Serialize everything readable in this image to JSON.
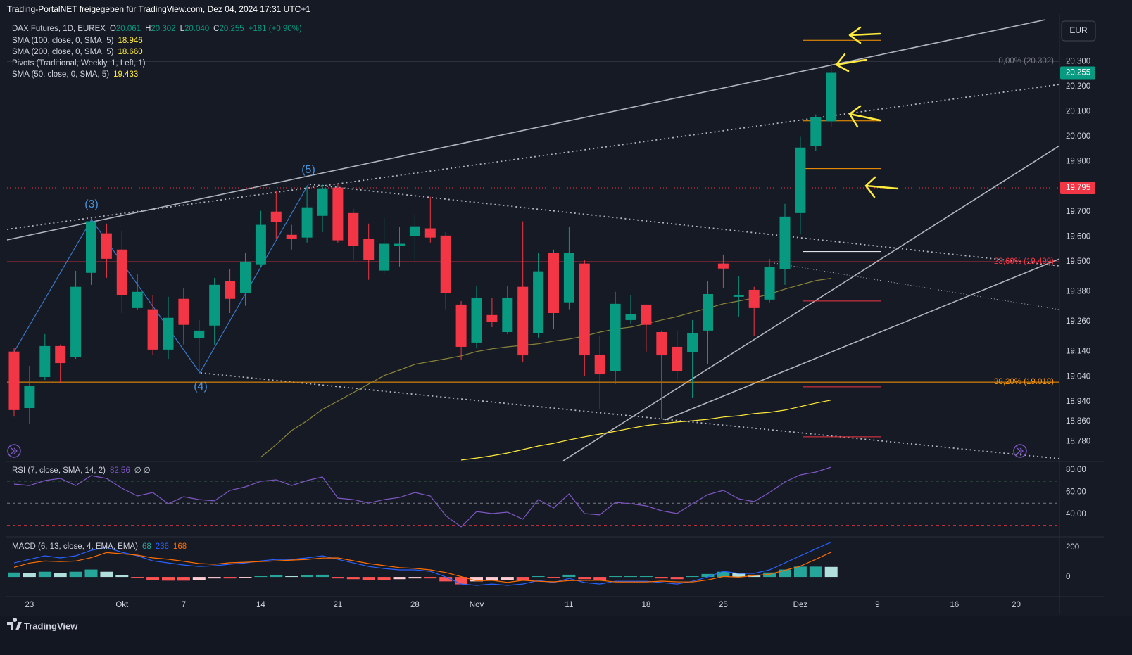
{
  "header": {
    "text": "Trading-PortalNET freigegeben für TradingView.com, Dez 04, 2024 17:31 UTC+1"
  },
  "currency": "EUR",
  "footer": {
    "brand": "TradingView"
  },
  "chart_data": [
    {
      "type": "candlestick",
      "title": "DAX Futures, 1D, EUREX",
      "legend_values": [
        {
          "key": "O",
          "text": "20.061"
        },
        {
          "key": "H",
          "text": "20.302"
        },
        {
          "key": "L",
          "text": "20.040"
        },
        {
          "key": "C",
          "text": "20.255"
        }
      ],
      "change": "+181 (+0,90%)",
      "waves": [
        "(3)",
        "(4)",
        "(5)"
      ],
      "categories": [
        null,
        "23",
        null,
        null,
        null,
        null,
        null,
        "Okt",
        null,
        null,
        null,
        "7",
        null,
        null,
        null,
        null,
        "14",
        null,
        null,
        null,
        null,
        "21",
        null,
        null,
        null,
        null,
        "28",
        null,
        null,
        null,
        "Nov",
        null,
        null,
        null,
        null,
        null,
        "11",
        null,
        null,
        null,
        null,
        "18",
        null,
        null,
        null,
        null,
        "25",
        null,
        null,
        null,
        null,
        "Dez",
        null,
        null,
        null,
        null,
        "9",
        null,
        null,
        null,
        null,
        "16",
        null,
        null,
        null,
        "20"
      ],
      "series": [
        {
          "name": "DAX Futures",
          "up_color": "#089981",
          "down_color": "#f23645",
          "open": [
            19.14,
            18.914,
            19.038,
            19.162,
            19.117,
            19.455,
            19.613,
            19.548,
            19.314,
            19.309,
            19.148,
            19.351,
            19.193,
            19.244,
            19.421,
            19.373,
            19.489,
            19.7,
            19.607,
            19.596,
            19.683,
            19.796,
            19.694,
            19.59,
            19.464,
            19.562,
            19.602,
            19.633,
            19.604,
            19.328,
            19.176,
            19.286,
            19.218,
            19.399,
            19.213,
            19.534,
            19.337,
            19.492,
            19.128,
            19.061,
            19.266,
            19.328,
            19.218,
            19.159,
            19.139,
            19.224,
            19.492,
            19.359,
            19.387,
            19.348,
            19.469,
            19.694,
            19.962,
            20.061,
            null,
            null,
            null,
            null,
            null,
            null,
            null,
            null,
            null,
            null,
            null,
            null
          ],
          "high": [
            19.154,
            19.083,
            19.21,
            19.168,
            19.463,
            19.675,
            19.652,
            19.624,
            19.449,
            19.365,
            19.359,
            19.393,
            19.266,
            19.435,
            19.469,
            19.534,
            19.703,
            19.782,
            19.647,
            19.801,
            19.81,
            19.81,
            19.711,
            19.652,
            19.675,
            19.638,
            19.689,
            19.759,
            19.618,
            19.342,
            19.401,
            19.356,
            19.401,
            19.661,
            19.534,
            19.548,
            19.638,
            19.506,
            19.204,
            19.379,
            19.365,
            19.328,
            19.224,
            19.224,
            19.266,
            19.421,
            19.528,
            19.441,
            19.399,
            19.511,
            19.731,
            19.999,
            20.089,
            20.302,
            null,
            null,
            null,
            null,
            null,
            null,
            null,
            null,
            null,
            null,
            null,
            null
          ],
          "low": [
            18.88,
            18.852,
            19.027,
            19.013,
            19.111,
            19.407,
            19.435,
            19.294,
            19.308,
            19.126,
            19.111,
            19.168,
            19.055,
            19.168,
            19.294,
            19.323,
            19.478,
            19.59,
            19.548,
            19.576,
            19.618,
            19.576,
            19.506,
            19.427,
            19.449,
            19.48,
            19.506,
            19.576,
            19.309,
            19.106,
            19.154,
            19.238,
            19.21,
            19.097,
            19.196,
            19.23,
            19.309,
            19.041,
            18.908,
            19.01,
            19.252,
            19.14,
            18.872,
            19.027,
            18.956,
            19.089,
            19.393,
            19.28,
            19.202,
            19.337,
            19.407,
            19.61,
            19.942,
            20.04,
            null,
            null,
            null,
            null,
            null,
            null,
            null,
            null,
            null,
            null,
            null,
            null
          ],
          "close": [
            18.906,
            19.004,
            19.162,
            19.094,
            19.399,
            19.661,
            19.511,
            19.365,
            19.379,
            19.148,
            19.275,
            19.247,
            19.224,
            19.407,
            19.351,
            19.5,
            19.647,
            19.658,
            19.59,
            19.717,
            19.793,
            19.585,
            19.562,
            19.506,
            19.571,
            19.571,
            19.641,
            19.596,
            19.373,
            19.159,
            19.356,
            19.258,
            19.356,
            19.125,
            19.461,
            19.294,
            19.534,
            19.125,
            19.049,
            19.331,
            19.289,
            19.247,
            19.125,
            19.063,
            19.213,
            19.37,
            19.472,
            19.365,
            19.314,
            19.478,
            19.68,
            19.956,
            20.078,
            20.255,
            null,
            null,
            null,
            null,
            null,
            null,
            null,
            null,
            null,
            null,
            null,
            null
          ]
        }
      ],
      "indicators": [
        {
          "name": "SMA (100, close, 0, SMA, 5)",
          "value": "18.946",
          "color": "#ffeb3b",
          "values": [
            null,
            null,
            null,
            null,
            null,
            null,
            null,
            null,
            null,
            null,
            null,
            null,
            null,
            null,
            null,
            null,
            null,
            null,
            null,
            null,
            null,
            null,
            null,
            null,
            null,
            null,
            null,
            null,
            null,
            18.706,
            18.714,
            18.723,
            18.734,
            18.748,
            18.762,
            18.773,
            18.787,
            18.799,
            18.81,
            18.821,
            18.833,
            18.844,
            18.852,
            18.858,
            18.863,
            18.869,
            18.878,
            18.883,
            18.892,
            18.897,
            18.906,
            18.92,
            18.934,
            18.946,
            null,
            null,
            null,
            null,
            null,
            null,
            null,
            null,
            null,
            null,
            null,
            null
          ]
        },
        {
          "name": "SMA (200, close, 0, SMA, 5)",
          "value": "18.660",
          "color": "#ffeb3b"
        },
        {
          "name": "Pivots (Traditional, Weekly, 1, Left, 1)"
        },
        {
          "name": "SMA (50, close, 0, SMA, 5)",
          "value": "19.433",
          "color": "#8a8538",
          "values": [
            null,
            null,
            null,
            null,
            null,
            null,
            null,
            null,
            null,
            null,
            null,
            null,
            null,
            null,
            null,
            null,
            18.717,
            18.768,
            18.824,
            18.863,
            18.909,
            18.942,
            18.976,
            19.01,
            19.044,
            19.066,
            19.089,
            19.1,
            19.111,
            19.123,
            19.14,
            19.151,
            19.159,
            19.165,
            19.171,
            19.182,
            19.19,
            19.202,
            19.218,
            19.23,
            19.238,
            19.252,
            19.266,
            19.28,
            19.297,
            19.314,
            19.331,
            19.342,
            19.354,
            19.37,
            19.39,
            19.407,
            19.424,
            19.433,
            null,
            null,
            null,
            null,
            null,
            null,
            null,
            null,
            null,
            null,
            null,
            null
          ]
        }
      ],
      "ylim": [
        18.703,
        20.49
      ],
      "yticks": [
        {
          "value": 20.3,
          "label": "20.300"
        },
        {
          "value": 20.2,
          "label": "20.200"
        },
        {
          "value": 20.1,
          "label": "20.100"
        },
        {
          "value": 20.0,
          "label": "20.000"
        },
        {
          "value": 19.9,
          "label": "19.900"
        },
        {
          "value": 19.7,
          "label": "19.700"
        },
        {
          "value": 19.6,
          "label": "19.600"
        },
        {
          "value": 19.5,
          "label": "19.500"
        },
        {
          "value": 19.38,
          "label": "19.380"
        },
        {
          "value": 19.26,
          "label": "19.260"
        },
        {
          "value": 19.14,
          "label": "19.140"
        },
        {
          "value": 19.04,
          "label": "19.040"
        },
        {
          "value": 18.94,
          "label": "18.940"
        },
        {
          "value": 18.86,
          "label": "18.860"
        },
        {
          "value": 18.78,
          "label": "18.780"
        }
      ],
      "grid": false,
      "fib": [
        {
          "label": "0,00% (20.302)",
          "value": 20.302,
          "color": "#787b86"
        },
        {
          "label": "23,60% (19.499)",
          "value": 19.499,
          "color": "#f23645"
        },
        {
          "label": "38,20% (19.018)",
          "value": 19.018,
          "color": "#ff9800"
        }
      ],
      "pivots": [
        {
          "value": 20.385,
          "color": "#ff9800"
        },
        {
          "value": 20.063,
          "color": "#ff9800"
        },
        {
          "value": 19.872,
          "color": "#ff9800"
        },
        {
          "value": 19.54,
          "color": "#ffffff"
        },
        {
          "value": 19.342,
          "color": "#f23645"
        },
        {
          "value": 18.999,
          "color": "#f23645"
        },
        {
          "value": 18.799,
          "color": "#f23645"
        }
      ],
      "hline": {
        "value": 19.795,
        "color": "#f23645"
      }
    },
    {
      "type": "line",
      "title": "RSI (7, close, SMA, 14, 2)",
      "value_text": "82,56",
      "extra": "∅ ∅",
      "series": [
        {
          "color": "#7e57c2",
          "values": [
            67.3,
            66.0,
            70.5,
            72.4,
            66.0,
            74.9,
            72.4,
            63.5,
            56.5,
            59.7,
            49.5,
            55.9,
            53.3,
            52.1,
            61.6,
            64.8,
            69.8,
            71.1,
            66.0,
            70.5,
            73.7,
            54.6,
            53.3,
            50.2,
            53.3,
            55.2,
            59.7,
            56.5,
            38.7,
            28.6,
            42.5,
            40.6,
            41.9,
            35.6,
            53.3,
            45.7,
            58.4,
            40.6,
            39.4,
            50.8,
            49.5,
            47.6,
            43.2,
            40.6,
            49.5,
            57.8,
            61.6,
            54.0,
            51.4,
            59.7,
            69.2,
            75.6,
            78.1,
            82.56,
            null,
            null,
            null,
            null,
            null,
            null,
            null,
            null,
            null,
            null,
            null,
            null
          ]
        }
      ],
      "ylim": [
        20.3,
        85.1
      ],
      "yticks": [
        {
          "value": 80,
          "label": "80,00"
        },
        {
          "value": 60,
          "label": "60,00"
        },
        {
          "value": 40,
          "label": "40,00"
        }
      ],
      "levels": [
        {
          "value": 70,
          "color": "#4caf50"
        },
        {
          "value": 50,
          "color": "#787b86"
        },
        {
          "value": 30,
          "color": "#f23645"
        }
      ]
    },
    {
      "type": "macd",
      "title": "MACD (6, 13, close, 4, EMA, EMA)",
      "histogram": {
        "colors": [
          "#26a69a",
          "#b2dfdb",
          "#ff5252",
          "#ffcdd2"
        ],
        "values": [
          30,
          25,
          35,
          25,
          35,
          50,
          35,
          10,
          -5,
          -20,
          -25,
          -25,
          -20,
          -10,
          -10,
          -5,
          5,
          10,
          5,
          10,
          15,
          -10,
          -15,
          -20,
          -20,
          -15,
          -10,
          -10,
          -30,
          -50,
          -30,
          -25,
          -20,
          -25,
          5,
          -5,
          15,
          -15,
          -25,
          5,
          5,
          5,
          -10,
          -15,
          5,
          20,
          35,
          25,
          15,
          30,
          50,
          70,
          70,
          68,
          null,
          null,
          null,
          null,
          null,
          null,
          null,
          null,
          null,
          null,
          null,
          null
        ]
      },
      "series": [
        {
          "color": "#2962ff",
          "values": [
            95,
            119,
            143,
            129,
            143,
            181,
            200,
            167,
            143,
            109,
            95,
            81,
            71,
            76,
            86,
            95,
            109,
            119,
            119,
            129,
            143,
            119,
            95,
            71,
            57,
            48,
            48,
            38,
            0,
            -48,
            -57,
            -48,
            -57,
            -48,
            -24,
            -38,
            -10,
            -38,
            -48,
            -29,
            -29,
            -29,
            -38,
            -48,
            -29,
            0,
            38,
            24,
            24,
            48,
            95,
            143,
            190,
            236,
            null,
            null,
            null,
            null,
            null,
            null,
            null,
            null,
            null,
            null,
            null,
            null
          ]
        },
        {
          "color": "#ff6d00",
          "values": [
            65,
            94,
            108,
            104,
            108,
            131,
            165,
            157,
            148,
            129,
            120,
            106,
            91,
            86,
            96,
            100,
            104,
            109,
            114,
            119,
            128,
            129,
            110,
            91,
            77,
            63,
            58,
            48,
            30,
            2,
            -27,
            -23,
            -37,
            -23,
            -29,
            -33,
            -25,
            -23,
            -23,
            -34,
            -34,
            -34,
            -28,
            -33,
            -34,
            -20,
            3,
            -1,
            9,
            18,
            45,
            73,
            120,
            168,
            null,
            null,
            null,
            null,
            null,
            null,
            null,
            null,
            null,
            null,
            null,
            null
          ]
        }
      ],
      "ylim": [
        -133,
        267
      ],
      "yticks": [
        200,
        0
      ]
    }
  ]
}
